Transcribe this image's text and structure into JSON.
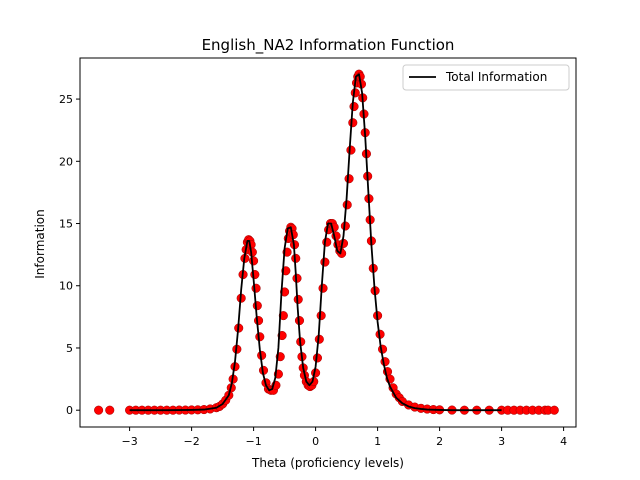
{
  "chart_data": {
    "type": "scatter",
    "title": "English_NA2 Information Function",
    "xlabel": "Theta (proficiency levels)",
    "ylabel": "Information",
    "xlim": [
      -3.8,
      4.2
    ],
    "ylim": [
      -1.35,
      28.3
    ],
    "xticks": [
      -3,
      -2,
      -1,
      0,
      1,
      2,
      3,
      4
    ],
    "yticks": [
      0,
      5,
      10,
      15,
      20,
      25
    ],
    "grid": false,
    "legend_position": "upper right",
    "colors": {
      "curve": "#000000",
      "points": "#ff0000",
      "point_edge": "#990000"
    },
    "series": [
      {
        "name": "Total Information",
        "kind": "line",
        "x": [
          -3.0,
          -2.8,
          -2.6,
          -2.4,
          -2.2,
          -2.0,
          -1.8,
          -1.6,
          -1.5,
          -1.4,
          -1.35,
          -1.3,
          -1.25,
          -1.2,
          -1.15,
          -1.1,
          -1.07,
          -1.04,
          -1.0,
          -0.95,
          -0.9,
          -0.85,
          -0.8,
          -0.75,
          -0.7,
          -0.65,
          -0.6,
          -0.55,
          -0.5,
          -0.45,
          -0.4,
          -0.35,
          -0.32,
          -0.29,
          -0.25,
          -0.2,
          -0.15,
          -0.1,
          -0.05,
          0.0,
          0.05,
          0.1,
          0.15,
          0.2,
          0.25,
          0.3,
          0.35,
          0.4,
          0.45,
          0.5,
          0.55,
          0.6,
          0.65,
          0.7,
          0.75,
          0.8,
          0.85,
          0.9,
          0.95,
          1.0,
          1.05,
          1.1,
          1.15,
          1.2,
          1.3,
          1.4,
          1.5,
          1.6,
          1.7,
          1.8,
          2.0,
          2.2,
          2.5,
          3.0
        ],
        "y": [
          0.0,
          0.0,
          0.0,
          0.0,
          0.01,
          0.02,
          0.05,
          0.2,
          0.5,
          1.2,
          2.2,
          3.9,
          6.5,
          9.7,
          12.2,
          13.6,
          13.6,
          12.7,
          10.5,
          7.5,
          4.9,
          3.0,
          2.0,
          1.6,
          1.7,
          2.6,
          5.0,
          9.5,
          13.0,
          14.6,
          14.7,
          13.3,
          11.0,
          8.3,
          5.5,
          3.4,
          2.3,
          2.0,
          2.3,
          3.5,
          6.0,
          10.0,
          13.5,
          15.0,
          15.0,
          14.0,
          12.8,
          12.6,
          14.0,
          17.0,
          21.0,
          24.7,
          26.8,
          27.0,
          25.5,
          22.0,
          17.6,
          13.3,
          9.8,
          7.1,
          5.1,
          3.7,
          2.6,
          1.9,
          1.0,
          0.55,
          0.3,
          0.17,
          0.1,
          0.05,
          0.02,
          0.0,
          0.0,
          0.0
        ]
      }
    ],
    "scatter": {
      "x": [
        -3.5,
        -3.32,
        -3.0,
        -2.9,
        -2.8,
        -2.7,
        -2.6,
        -2.5,
        -2.4,
        -2.3,
        -2.2,
        -2.1,
        -2.0,
        -1.9,
        -1.8,
        -1.7,
        -1.6,
        -1.55,
        -1.5,
        -1.45,
        -1.4,
        -1.36,
        -1.33,
        -1.3,
        -1.27,
        -1.24,
        -1.2,
        -1.17,
        -1.14,
        -1.12,
        -1.1,
        -1.08,
        -1.06,
        -1.04,
        -1.02,
        -1.0,
        -0.98,
        -0.96,
        -0.94,
        -0.92,
        -0.9,
        -0.87,
        -0.84,
        -0.8,
        -0.76,
        -0.72,
        -0.68,
        -0.64,
        -0.6,
        -0.57,
        -0.54,
        -0.52,
        -0.5,
        -0.48,
        -0.46,
        -0.44,
        -0.42,
        -0.4,
        -0.38,
        -0.36,
        -0.34,
        -0.32,
        -0.3,
        -0.28,
        -0.26,
        -0.24,
        -0.22,
        -0.2,
        -0.18,
        -0.15,
        -0.12,
        -0.09,
        -0.06,
        -0.03,
        0.0,
        0.03,
        0.06,
        0.09,
        0.12,
        0.15,
        0.18,
        0.21,
        0.24,
        0.27,
        0.3,
        0.33,
        0.36,
        0.39,
        0.42,
        0.45,
        0.48,
        0.51,
        0.54,
        0.57,
        0.6,
        0.62,
        0.64,
        0.66,
        0.68,
        0.7,
        0.72,
        0.74,
        0.76,
        0.78,
        0.8,
        0.82,
        0.84,
        0.86,
        0.88,
        0.9,
        0.93,
        0.96,
        1.0,
        1.04,
        1.08,
        1.12,
        1.16,
        1.2,
        1.25,
        1.3,
        1.35,
        1.4,
        1.5,
        1.6,
        1.7,
        1.8,
        1.9,
        2.0,
        2.2,
        2.4,
        2.6,
        2.8,
        3.0,
        3.1,
        3.2,
        3.3,
        3.4,
        3.5,
        3.6,
        3.7,
        3.75,
        3.85
      ],
      "y": [
        0.0,
        0.0,
        0.0,
        0.0,
        0.0,
        0.0,
        0.0,
        0.0,
        0.0,
        0.0,
        0.01,
        0.01,
        0.02,
        0.03,
        0.05,
        0.1,
        0.2,
        0.3,
        0.5,
        0.8,
        1.2,
        1.8,
        2.5,
        3.5,
        4.9,
        6.6,
        9.0,
        10.9,
        12.2,
        12.9,
        13.5,
        13.7,
        13.6,
        13.3,
        12.7,
        12.0,
        10.9,
        9.8,
        8.4,
        7.2,
        5.9,
        4.4,
        3.2,
        2.2,
        1.7,
        1.6,
        1.6,
        2.0,
        2.9,
        4.3,
        6.0,
        7.6,
        9.5,
        11.2,
        12.7,
        13.8,
        14.4,
        14.7,
        14.6,
        14.1,
        13.3,
        12.2,
        10.6,
        8.9,
        7.2,
        5.5,
        4.3,
        3.4,
        2.8,
        2.3,
        2.0,
        1.9,
        2.0,
        2.3,
        3.0,
        4.2,
        5.7,
        7.6,
        9.8,
        11.9,
        13.5,
        14.5,
        15.0,
        15.0,
        14.7,
        14.0,
        13.3,
        12.8,
        12.6,
        13.4,
        14.8,
        16.5,
        18.6,
        20.9,
        23.1,
        24.4,
        25.5,
        26.3,
        26.8,
        27.0,
        26.8,
        26.2,
        25.1,
        23.8,
        22.3,
        20.6,
        18.8,
        17.0,
        15.3,
        13.6,
        11.4,
        9.6,
        7.6,
        6.1,
        4.9,
        3.9,
        3.1,
        2.5,
        1.8,
        1.3,
        1.0,
        0.7,
        0.42,
        0.25,
        0.15,
        0.09,
        0.05,
        0.03,
        0.01,
        0.0,
        0.0,
        0.0,
        0.0,
        0.0,
        0.0,
        0.0,
        0.0,
        0.0,
        0.0,
        0.0,
        0.0,
        0.0
      ]
    }
  }
}
